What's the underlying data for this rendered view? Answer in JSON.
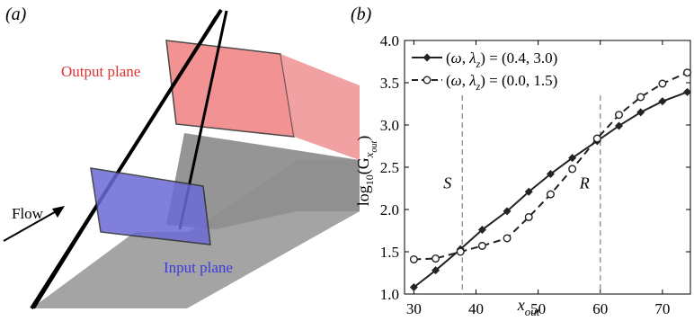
{
  "panel_a": {
    "label": "(a)",
    "output_plane_label": "Output plane",
    "input_plane_label": "Input plane",
    "flow_label": "Flow",
    "colors": {
      "output_plane": "#f08080",
      "input_plane": "#6b6bd6",
      "shadow": "#9a9a9a",
      "output_text": "#e03030",
      "input_text": "#3a3ae0"
    }
  },
  "panel_b": {
    "label": "(b)"
  },
  "chart_data": {
    "type": "line",
    "xlabel_main": "x",
    "xlabel_sub": "out",
    "ylabel_main": "log",
    "ylabel_sub10": "10",
    "ylabel_mid": "(G",
    "ylabel_sub": "x",
    "ylabel_subsub": "out",
    "ylabel_end": ")",
    "xlim": [
      28.5,
      74.5
    ],
    "ylim": [
      1.0,
      4.0
    ],
    "xticks": [
      30,
      40,
      50,
      60,
      70
    ],
    "yticks": [
      1.0,
      1.5,
      2.0,
      2.5,
      3.0,
      3.5,
      4.0
    ],
    "ytick_labels": [
      "1.0",
      "1.5",
      "2.0",
      "2.5",
      "3.0",
      "3.5",
      "4.0"
    ],
    "annotations": [
      {
        "label": "S",
        "x": 37.8
      },
      {
        "label": "R",
        "x": 60.0
      }
    ],
    "legend_position": "top-left",
    "series": [
      {
        "name": "(ω, λz) = (0.4, 3.0)",
        "legend_parts": [
          "(",
          "ω",
          ", ",
          "λ",
          "z",
          ") = (0.4, 3.0)"
        ],
        "style": "solid",
        "marker": "filled-diamond",
        "color": "#222222",
        "x": [
          30,
          33.5,
          37.5,
          41,
          45,
          48.5,
          52,
          55.5,
          59.5,
          63,
          66.5,
          70,
          74
        ],
        "y": [
          1.08,
          1.28,
          1.53,
          1.76,
          1.98,
          2.21,
          2.42,
          2.61,
          2.81,
          2.99,
          3.15,
          3.28,
          3.39
        ]
      },
      {
        "name": "(ω, λz) = (0.0, 1.5)",
        "legend_parts": [
          "(",
          "ω",
          ", ",
          "λ",
          "z",
          ") = (0.0, 1.5)"
        ],
        "style": "dashed",
        "marker": "open-circle",
        "color": "#222222",
        "x": [
          30,
          33.5,
          37.5,
          41,
          45,
          48.5,
          52,
          55.5,
          59.5,
          63,
          66.5,
          70,
          74
        ],
        "y": [
          1.41,
          1.42,
          1.5,
          1.57,
          1.66,
          1.91,
          2.18,
          2.48,
          2.84,
          3.12,
          3.33,
          3.49,
          3.62
        ]
      }
    ]
  }
}
